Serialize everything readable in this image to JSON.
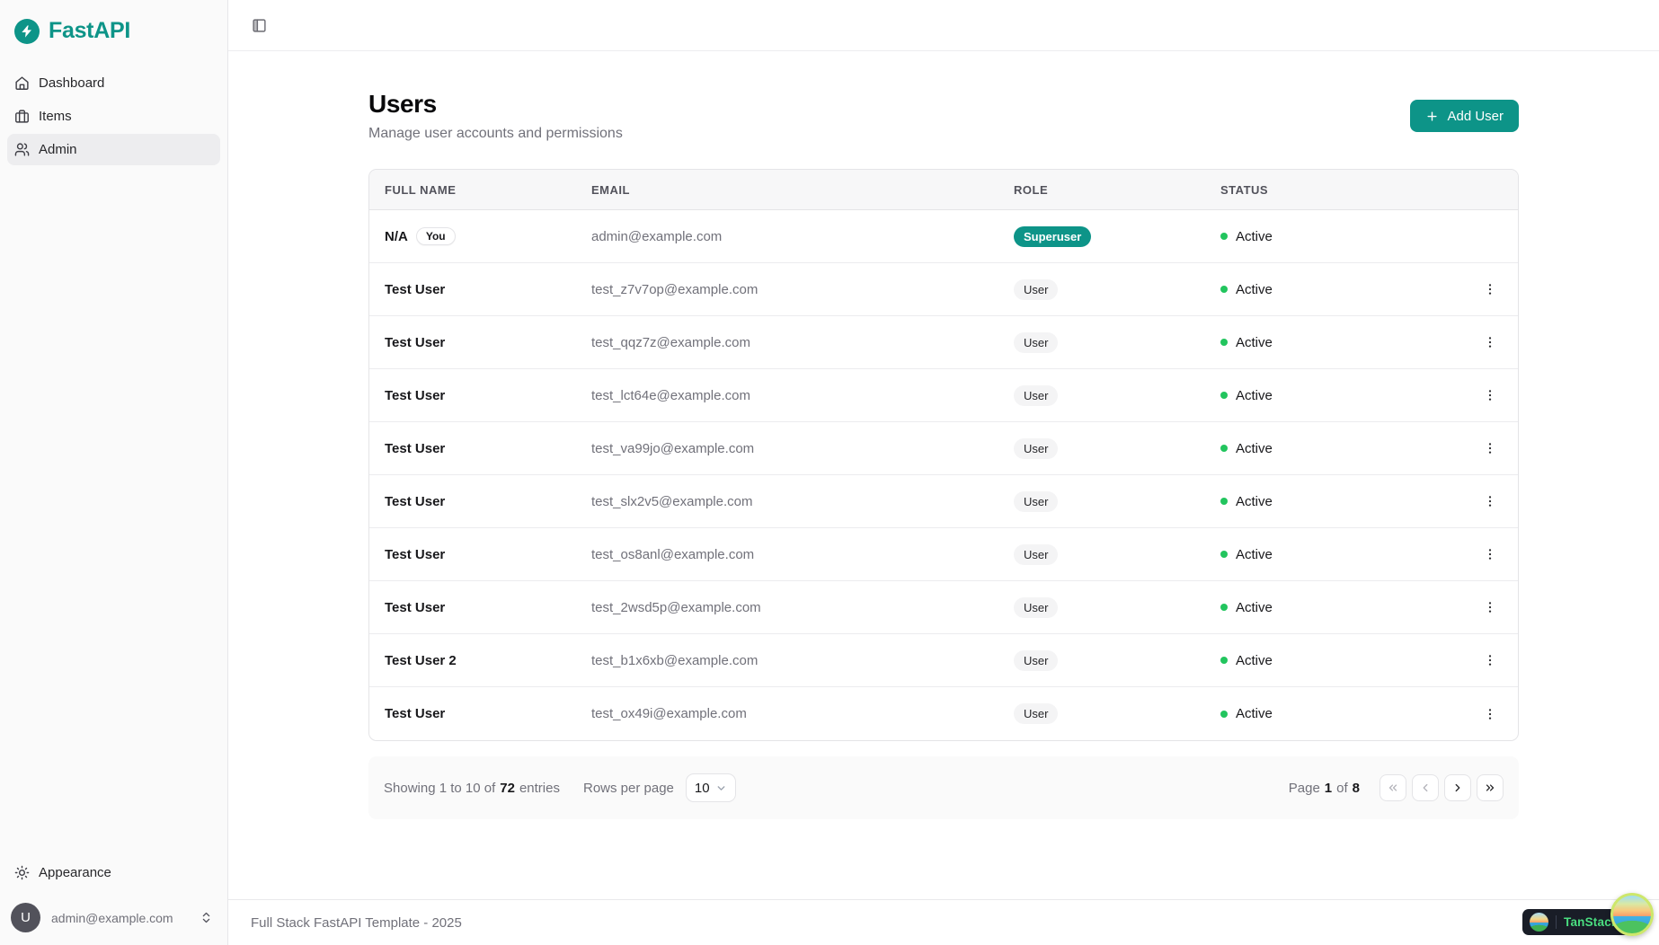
{
  "colors": {
    "accent": "#0d9488",
    "success": "#22c55e"
  },
  "brand": {
    "name": "FastAPI"
  },
  "sidebar": {
    "items": [
      {
        "label": "Dashboard",
        "icon": "home",
        "active": false
      },
      {
        "label": "Items",
        "icon": "briefcase",
        "active": false
      },
      {
        "label": "Admin",
        "icon": "users",
        "active": true
      }
    ],
    "appearance_label": "Appearance",
    "user": {
      "initial": "U",
      "email": "admin@example.com"
    }
  },
  "page": {
    "title": "Users",
    "subtitle": "Manage user accounts and permissions",
    "add_user_label": "Add User"
  },
  "table": {
    "columns": [
      "FULL NAME",
      "EMAIL",
      "ROLE",
      "STATUS"
    ],
    "rows": [
      {
        "name": "N/A",
        "you": "You",
        "email": "admin@example.com",
        "role": "Superuser",
        "status": "Active",
        "menu": false
      },
      {
        "name": "Test User",
        "email": "test_z7v7op@example.com",
        "role": "User",
        "status": "Active",
        "menu": true
      },
      {
        "name": "Test User",
        "email": "test_qqz7z@example.com",
        "role": "User",
        "status": "Active",
        "menu": true
      },
      {
        "name": "Test User",
        "email": "test_lct64e@example.com",
        "role": "User",
        "status": "Active",
        "menu": true
      },
      {
        "name": "Test User",
        "email": "test_va99jo@example.com",
        "role": "User",
        "status": "Active",
        "menu": true
      },
      {
        "name": "Test User",
        "email": "test_slx2v5@example.com",
        "role": "User",
        "status": "Active",
        "menu": true
      },
      {
        "name": "Test User",
        "email": "test_os8anl@example.com",
        "role": "User",
        "status": "Active",
        "menu": true
      },
      {
        "name": "Test User",
        "email": "test_2wsd5p@example.com",
        "role": "User",
        "status": "Active",
        "menu": true
      },
      {
        "name": "Test User 2",
        "email": "test_b1x6xb@example.com",
        "role": "User",
        "status": "Active",
        "menu": true
      },
      {
        "name": "Test User",
        "email": "test_ox49i@example.com",
        "role": "User",
        "status": "Active",
        "menu": true
      }
    ]
  },
  "pagination": {
    "showing_prefix": "Showing 1 to 10 of",
    "total_entries": "72",
    "entries_suffix": "entries",
    "rows_per_page_label": "Rows per page",
    "rows_per_page_value": "10",
    "page_label": "Page",
    "page_current": "1",
    "of_label": "of",
    "page_total": "8"
  },
  "footer": {
    "text": "Full Stack FastAPI Template - 2025"
  },
  "devtools": {
    "label": "TanStack"
  }
}
